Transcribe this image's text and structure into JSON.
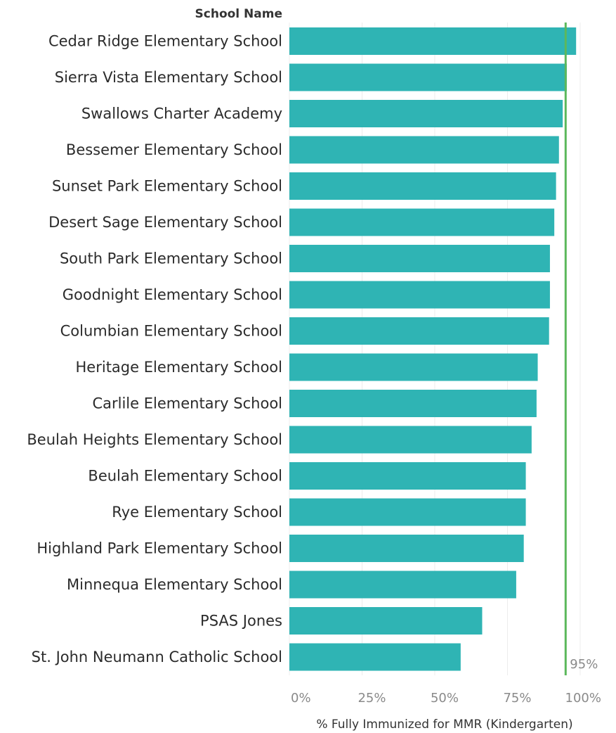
{
  "chart_data": {
    "type": "bar",
    "orientation": "horizontal",
    "row_header": "School Name",
    "xlabel": "% Fully Immunized for MMR (Kindergarten)",
    "xlim": [
      0,
      100
    ],
    "x_ticks": [
      "0%",
      "25%",
      "50%",
      "75%",
      "100%"
    ],
    "grid": true,
    "bar_color": "#2fb4b4",
    "reference_line": {
      "value": 95,
      "label": "95%",
      "color": "#5cb85c"
    },
    "categories": [
      "Cedar Ridge Elementary School",
      "Sierra Vista Elementary School",
      "Swallows Charter Academy",
      "Bessemer Elementary School",
      "Sunset Park Elementary School",
      "Desert Sage Elementary School",
      "South Park Elementary School",
      "Goodnight Elementary School",
      "Columbian Elementary School",
      "Heritage Elementary School",
      "Carlile Elementary School",
      "Beulah Heights Elementary School",
      "Beulah Elementary School",
      "Rye Elementary School",
      "Highland Park Elementary School",
      "Minnequa Elementary School",
      "PSAS Jones",
      "St. John Neumann Catholic School"
    ],
    "values": [
      98.6,
      95.4,
      94.0,
      92.7,
      91.7,
      91.1,
      89.6,
      89.6,
      89.3,
      85.4,
      85.0,
      83.3,
      81.3,
      81.3,
      80.6,
      78.0,
      66.3,
      58.9
    ]
  }
}
